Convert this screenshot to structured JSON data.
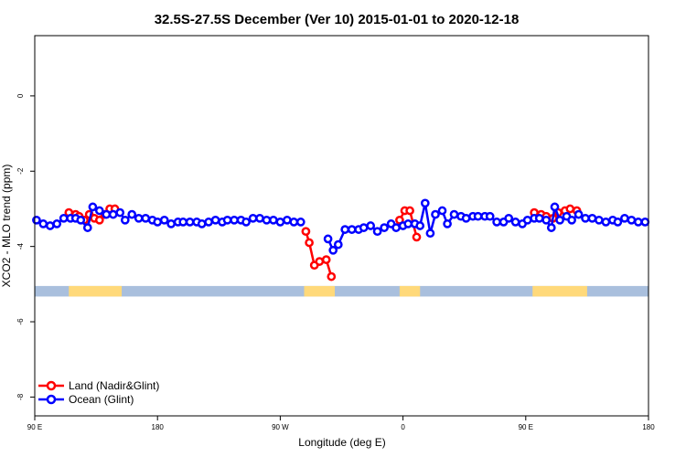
{
  "chart_data": {
    "type": "line",
    "title": "32.5S-27.5S December (Ver 10)   2015-01-01 to 2020-12-18",
    "xlabel": "Longitude (deg E)",
    "ylabel": "XCO2 - MLO trend (ppm)",
    "xlim": [
      90,
      450
    ],
    "ylim": [
      -8.5,
      1.6
    ],
    "x_ticks": [
      {
        "value": 90,
        "label": "90 E"
      },
      {
        "value": 162,
        "label": "180"
      },
      {
        "value": 234,
        "label": "90 W"
      },
      {
        "value": 306,
        "label": "0"
      },
      {
        "value": 378,
        "label": "90 E"
      },
      {
        "value": 450,
        "label": "180"
      }
    ],
    "y_ticks": [
      0,
      -2,
      -4,
      -6,
      -8
    ],
    "grid": false,
    "legend_position": "bottom-left",
    "surface_band": {
      "y_range": [
        -5.33,
        -5.05
      ],
      "ocean_color": "#a9bfdd",
      "land_color": "#ffd97a",
      "land_segments": [
        [
          110,
          141
        ],
        [
          248,
          266
        ],
        [
          304,
          316
        ],
        [
          382,
          414
        ]
      ]
    },
    "series": [
      {
        "name": "Land (Nadir&Glint)",
        "color": "#ff0000",
        "segments": [
          [
            [
              110,
              -3.1
            ],
            [
              114,
              -3.15
            ],
            [
              116,
              -3.2
            ],
            [
              119,
              -3.3
            ],
            [
              122,
              -3.15
            ],
            [
              125,
              -3.25
            ],
            [
              128,
              -3.3
            ],
            [
              131,
              -3.15
            ],
            [
              134,
              -3.0
            ],
            [
              137,
              -3.0
            ]
          ],
          [
            [
              249,
              -3.6
            ],
            [
              251,
              -3.9
            ],
            [
              254,
              -4.5
            ],
            [
              257,
              -4.4
            ],
            [
              261,
              -4.35
            ],
            [
              264,
              -4.8
            ]
          ],
          [
            [
              304,
              -3.3
            ],
            [
              307,
              -3.05
            ],
            [
              310,
              -3.05
            ],
            [
              314,
              -3.75
            ]
          ],
          [
            [
              383,
              -3.1
            ],
            [
              387,
              -3.15
            ],
            [
              390,
              -3.2
            ],
            [
              394,
              -3.25
            ],
            [
              397,
              -3.1
            ],
            [
              401,
              -3.05
            ],
            [
              404,
              -3.0
            ],
            [
              408,
              -3.05
            ]
          ]
        ]
      },
      {
        "name": "Ocean (Glint)",
        "color": "#0000ff",
        "segments": [
          [
            [
              91,
              -3.3
            ],
            [
              95,
              -3.4
            ],
            [
              99,
              -3.45
            ],
            [
              103,
              -3.4
            ],
            [
              107,
              -3.25
            ],
            [
              111,
              -3.25
            ],
            [
              114,
              -3.25
            ],
            [
              117,
              -3.3
            ],
            [
              121,
              -3.5
            ],
            [
              124,
              -2.95
            ],
            [
              128,
              -3.05
            ],
            [
              132,
              -3.15
            ],
            [
              136,
              -3.15
            ],
            [
              140,
              -3.1
            ],
            [
              143,
              -3.3
            ],
            [
              147,
              -3.15
            ],
            [
              151,
              -3.25
            ],
            [
              155,
              -3.25
            ],
            [
              159,
              -3.3
            ],
            [
              162,
              -3.35
            ],
            [
              166,
              -3.3
            ],
            [
              170,
              -3.4
            ],
            [
              174,
              -3.35
            ],
            [
              177,
              -3.35
            ],
            [
              181,
              -3.35
            ],
            [
              185,
              -3.35
            ],
            [
              188,
              -3.4
            ],
            [
              192,
              -3.35
            ],
            [
              196,
              -3.3
            ],
            [
              200,
              -3.35
            ],
            [
              203,
              -3.3
            ],
            [
              207,
              -3.3
            ],
            [
              211,
              -3.3
            ],
            [
              214,
              -3.35
            ],
            [
              218,
              -3.25
            ],
            [
              222,
              -3.25
            ],
            [
              226,
              -3.3
            ],
            [
              230,
              -3.3
            ],
            [
              234,
              -3.35
            ],
            [
              238,
              -3.3
            ],
            [
              242,
              -3.35
            ],
            [
              246,
              -3.35
            ]
          ],
          [
            [
              262,
              -3.8
            ],
            [
              265,
              -4.1
            ],
            [
              268,
              -3.95
            ],
            [
              272,
              -3.55
            ],
            [
              276,
              -3.55
            ],
            [
              280,
              -3.55
            ],
            [
              283,
              -3.5
            ],
            [
              287,
              -3.45
            ],
            [
              291,
              -3.6
            ],
            [
              295,
              -3.5
            ],
            [
              299,
              -3.4
            ],
            [
              302,
              -3.5
            ],
            [
              306,
              -3.45
            ],
            [
              309,
              -3.4
            ],
            [
              313,
              -3.4
            ],
            [
              316,
              -3.45
            ],
            [
              319,
              -2.85
            ],
            [
              322,
              -3.65
            ],
            [
              325,
              -3.15
            ],
            [
              329,
              -3.05
            ],
            [
              332,
              -3.4
            ],
            [
              336,
              -3.15
            ],
            [
              340,
              -3.2
            ],
            [
              343,
              -3.25
            ],
            [
              347,
              -3.2
            ],
            [
              350,
              -3.2
            ],
            [
              354,
              -3.2
            ],
            [
              357,
              -3.2
            ],
            [
              361,
              -3.35
            ],
            [
              365,
              -3.35
            ],
            [
              368,
              -3.25
            ],
            [
              372,
              -3.35
            ],
            [
              376,
              -3.4
            ],
            [
              379,
              -3.3
            ],
            [
              383,
              -3.25
            ],
            [
              386,
              -3.25
            ],
            [
              390,
              -3.3
            ],
            [
              393,
              -3.5
            ],
            [
              395,
              -2.95
            ],
            [
              398,
              -3.3
            ],
            [
              402,
              -3.2
            ],
            [
              405,
              -3.3
            ],
            [
              409,
              -3.15
            ],
            [
              413,
              -3.25
            ],
            [
              417,
              -3.25
            ],
            [
              421,
              -3.3
            ],
            [
              425,
              -3.35
            ],
            [
              429,
              -3.3
            ],
            [
              432,
              -3.35
            ],
            [
              436,
              -3.25
            ],
            [
              440,
              -3.3
            ],
            [
              444,
              -3.35
            ],
            [
              448,
              -3.35
            ]
          ]
        ]
      }
    ]
  }
}
